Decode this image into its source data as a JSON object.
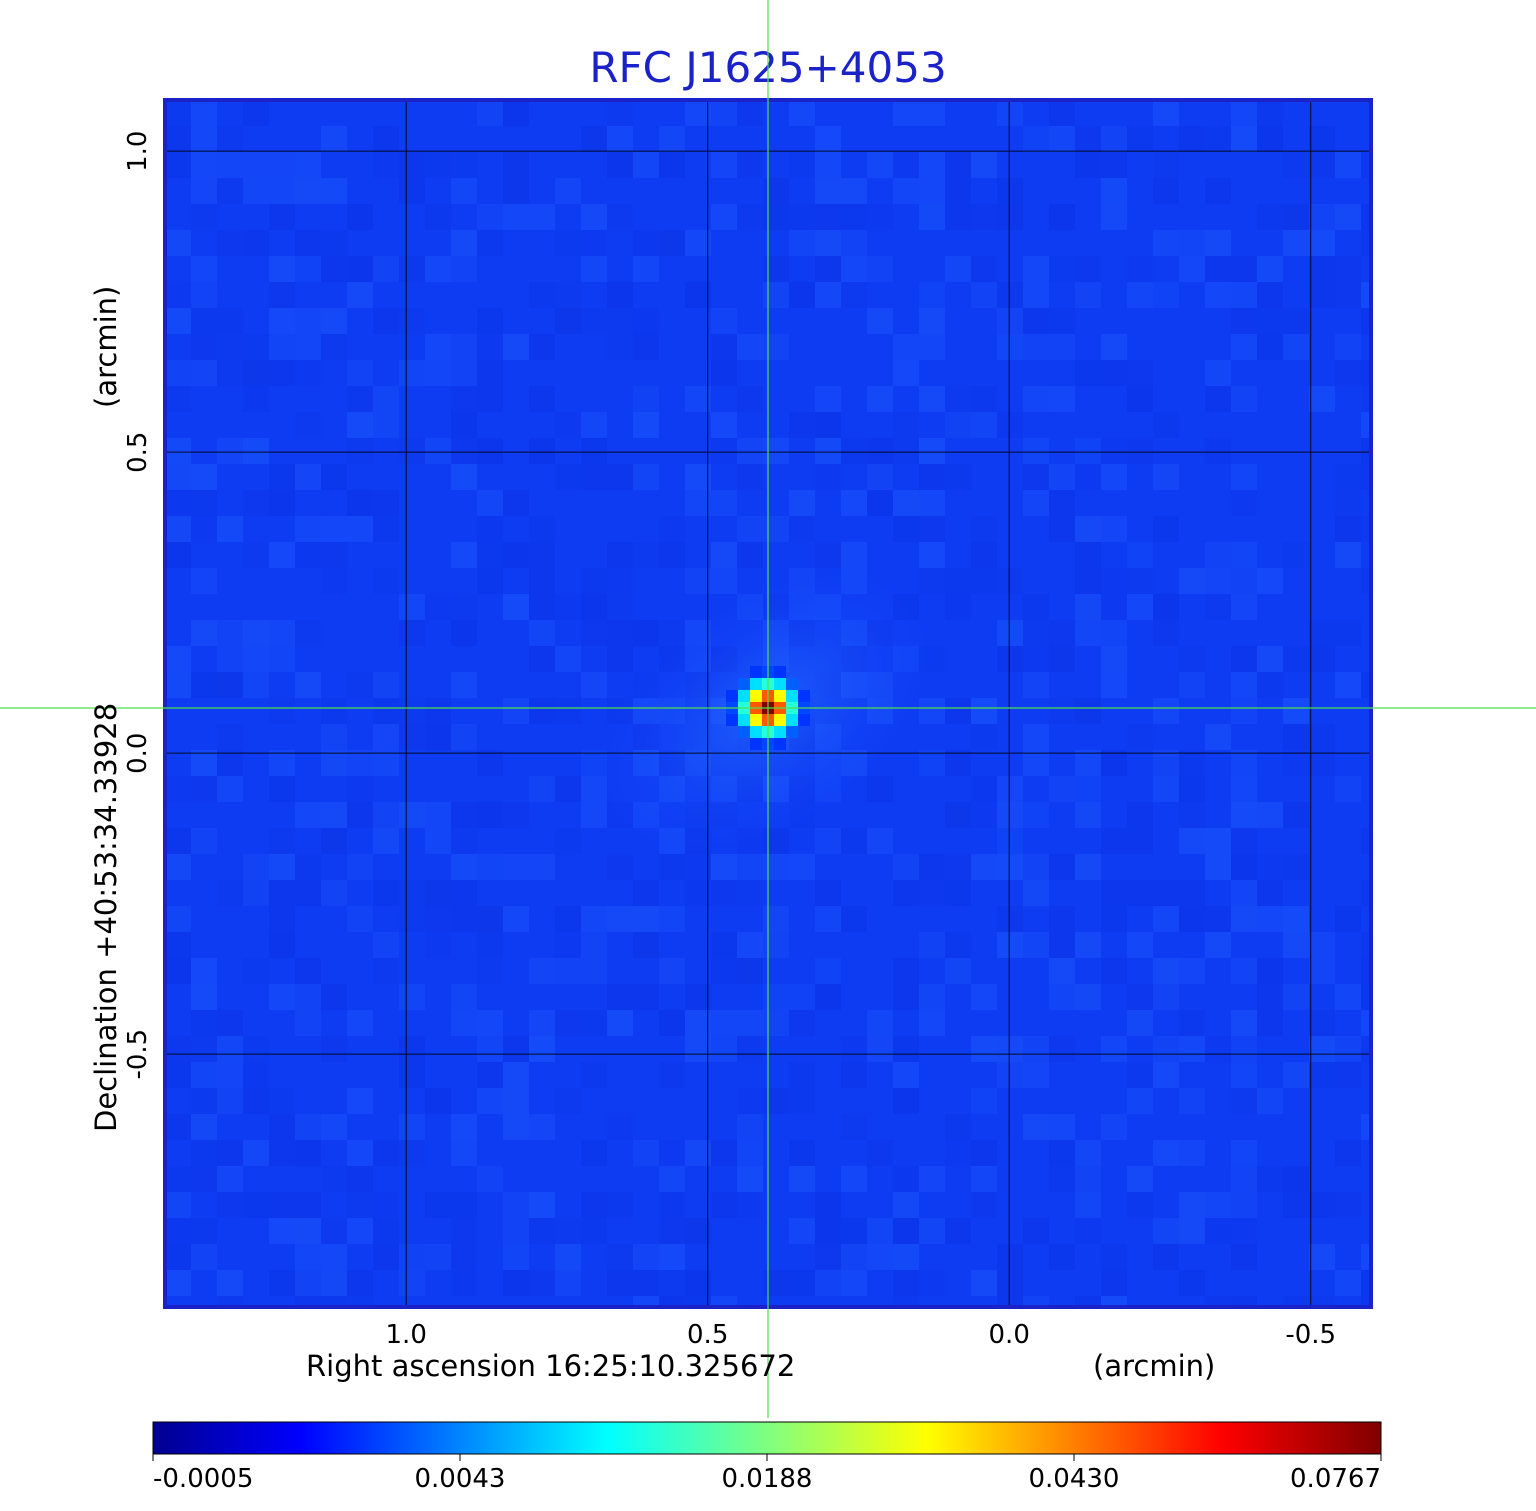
{
  "chart_data": {
    "type": "heatmap",
    "title": "RFC J1625+4053",
    "xlabel": "Right ascension  16:25:10.325672",
    "xlabel_unit": "(arcmin)",
    "ylabel": "Declination  +40:53:34.33928",
    "ylabel_unit": "(arcmin)",
    "x_ticks": [
      "1.0",
      "0.5",
      "0.0",
      "-0.5"
    ],
    "x_tick_values": [
      1.0,
      0.5,
      0.0,
      -0.5
    ],
    "y_ticks": [
      "1.0",
      "0.5",
      "0.0",
      "-0.5"
    ],
    "y_tick_values": [
      1.0,
      0.5,
      0.0,
      -0.5
    ],
    "xlim": [
      1.4,
      -0.6
    ],
    "ylim": [
      -0.92,
      1.085
    ],
    "x_direction": "decreasing-right",
    "grid": true,
    "crosshair": {
      "x": 0.4,
      "y": 0.075,
      "color": "#4de04d"
    },
    "source_peak": {
      "x": 0.4,
      "y": 0.075,
      "value": 0.0767
    },
    "colormap": "jet",
    "colorbar": {
      "placement": "bottom",
      "tick_labels": [
        "-0.0005",
        "0.0043",
        "0.0188",
        "0.0430",
        "0.0767"
      ],
      "tick_values": [
        -0.0005,
        0.0043,
        0.0188,
        0.043,
        0.0767
      ],
      "vmin": -0.0005,
      "vmax": 0.0767
    }
  }
}
